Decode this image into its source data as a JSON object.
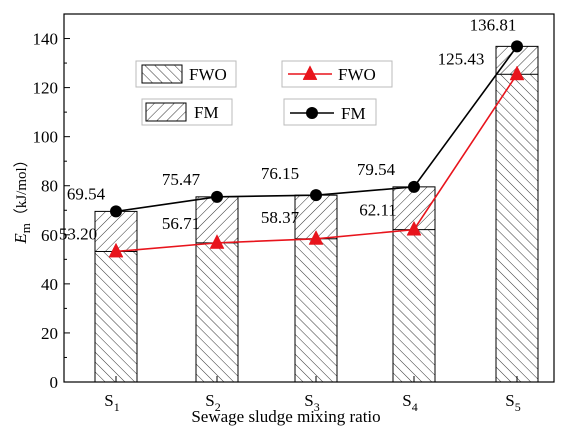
{
  "chart_data": {
    "type": "bar",
    "categories": [
      {
        "base": "S",
        "sub": "1"
      },
      {
        "base": "S",
        "sub": "2"
      },
      {
        "base": "S",
        "sub": "3"
      },
      {
        "base": "S",
        "sub": "4"
      },
      {
        "base": "S",
        "sub": "5"
      }
    ],
    "xlabel": "Sewage sludge mixing ratio",
    "ylabel": {
      "main": "E",
      "sub": "m",
      "unit": "（kJ/mol）"
    },
    "ylim": [
      0,
      150
    ],
    "yticks": [
      0,
      20,
      40,
      60,
      80,
      100,
      120,
      140
    ],
    "grid": false,
    "series": [
      {
        "name": "FWO",
        "values": [
          53.2,
          56.71,
          58.37,
          62.11,
          125.43
        ],
        "labels": [
          "53.20",
          "56.71",
          "58.37",
          "62.11",
          "125.43"
        ],
        "bar_pattern": "diagonal-hatch",
        "line_color": "#e8141c",
        "marker": "triangle"
      },
      {
        "name": "FM",
        "values": [
          69.54,
          75.47,
          76.15,
          79.54,
          136.81
        ],
        "labels": [
          "69.54",
          "75.47",
          "76.15",
          "79.54",
          "136.81"
        ],
        "bar_pattern": "cross-hatch",
        "line_color": "#000000",
        "marker": "circle"
      }
    ],
    "legend": {
      "bar_entries": [
        "FWO",
        "FM"
      ],
      "line_entries": [
        "FWO",
        "FM"
      ],
      "placement": "top-left"
    }
  }
}
